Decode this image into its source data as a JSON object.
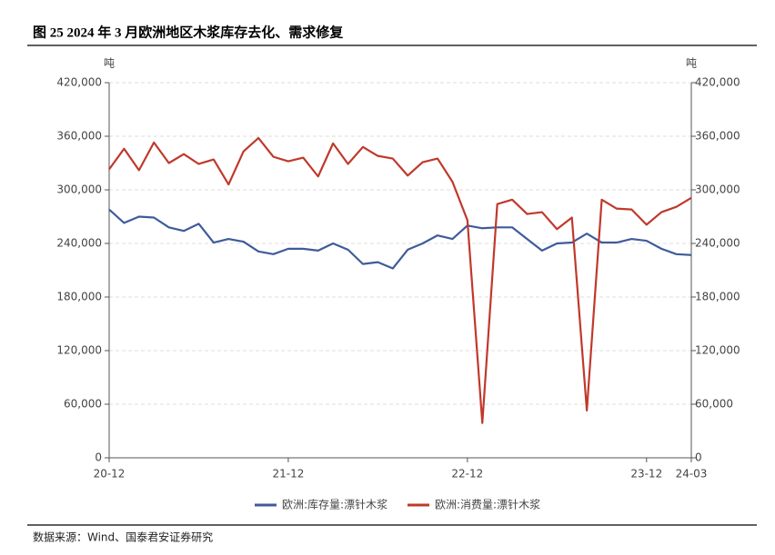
{
  "chart_data": {
    "type": "line",
    "title": "图 25 2024 年 3 月欧洲地区木浆库存去化、需求修复",
    "source": "数据来源：Wind、国泰君安证券研究",
    "y_unit": "吨",
    "y2_unit": "吨",
    "categories": [
      "20-12",
      null,
      null,
      null,
      null,
      null,
      null,
      null,
      null,
      null,
      null,
      null,
      "21-12",
      null,
      null,
      null,
      null,
      null,
      null,
      null,
      null,
      null,
      null,
      null,
      "22-12",
      null,
      null,
      null,
      null,
      null,
      null,
      null,
      null,
      null,
      null,
      null,
      "23-12",
      null,
      null,
      "24-03"
    ],
    "series": [
      {
        "name": "欧洲:库存量:漂针木浆",
        "color": "#3f5b9a",
        "values": [
          278000,
          263000,
          270000,
          269000,
          258000,
          254000,
          262000,
          241000,
          245000,
          242000,
          231000,
          228000,
          234000,
          234000,
          232000,
          240000,
          233000,
          217000,
          219000,
          212000,
          233000,
          240000,
          249000,
          245000,
          260000,
          257000,
          258000,
          258000,
          245000,
          232000,
          240000,
          241000,
          251000,
          241000,
          241000,
          245000,
          243000,
          234000,
          228000,
          227000
        ]
      },
      {
        "name": "欧洲:消费量:漂针木浆",
        "color": "#c0392b",
        "axis": "y2",
        "values": [
          323000,
          346000,
          322000,
          353000,
          330000,
          340000,
          329000,
          334000,
          306000,
          343000,
          358000,
          337000,
          332000,
          336000,
          315000,
          352000,
          329000,
          348000,
          338000,
          335000,
          316000,
          331000,
          335000,
          309000,
          266000,
          39000,
          284000,
          289000,
          273000,
          275000,
          256000,
          269000,
          53000,
          289000,
          279000,
          278000,
          261000,
          275000,
          281000,
          291000
        ]
      }
    ],
    "ylim": [
      0,
      420000
    ],
    "yticks": [
      0,
      {
        "value": 60000,
        "label": "60,000"
      },
      {
        "value": 120000,
        "label": "120,000"
      },
      {
        "value": 180000,
        "label": "180,000"
      },
      {
        "value": 240000,
        "label": "240,000"
      },
      {
        "value": 300000,
        "label": "300,000"
      },
      {
        "value": 360000,
        "label": "360,000"
      },
      {
        "value": 420000,
        "label": "420,000"
      }
    ],
    "y2lim": [
      0,
      420000
    ],
    "y2ticks": [
      0,
      {
        "value": 60000,
        "label": "60,000"
      },
      {
        "value": 120000,
        "label": "120,000"
      },
      {
        "value": 180000,
        "label": "180,000"
      },
      {
        "value": 240000,
        "label": "240,000"
      },
      {
        "value": 300000,
        "label": "300,000"
      },
      {
        "value": 360000,
        "label": "360,000"
      },
      {
        "value": 420000,
        "label": "420,000"
      }
    ],
    "grid": true
  }
}
